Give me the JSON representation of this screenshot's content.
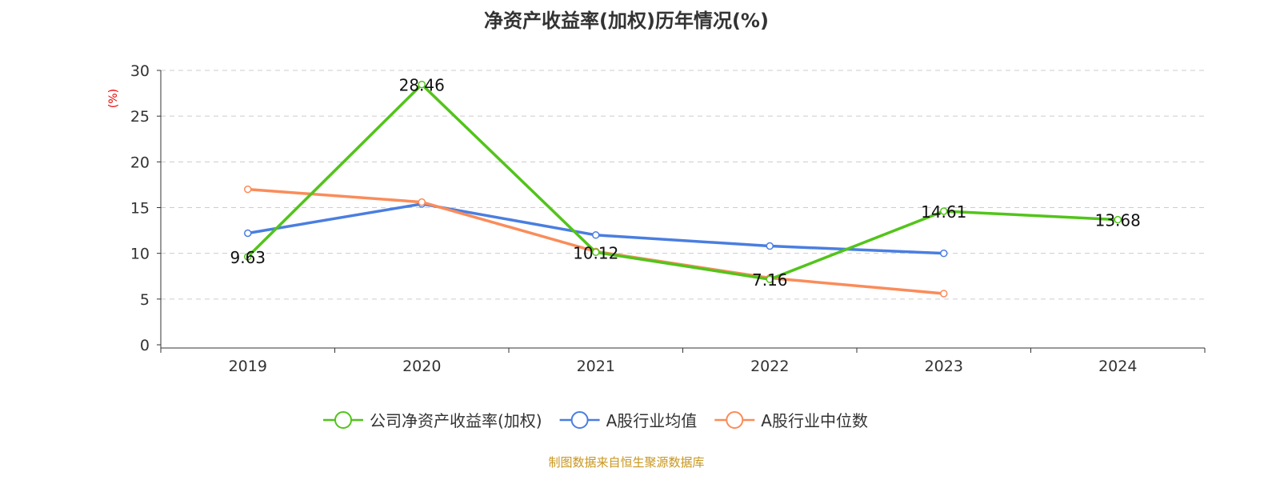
{
  "title": "净资产收益率(加权)历年情况(%)",
  "footer": "制图数据来自恒生聚源数据库",
  "chart_data": {
    "type": "line",
    "title": "净资产收益率(加权)历年情况(%)",
    "ylabel": "(%)",
    "ylim": [
      0,
      30
    ],
    "yticks": [
      0,
      5,
      10,
      15,
      20,
      25,
      30
    ],
    "categories": [
      "2019",
      "2020",
      "2021",
      "2022",
      "2023",
      "2024"
    ],
    "grid": true,
    "legend_position": "bottom",
    "series": [
      {
        "name": "公司净资产收益率(加权)",
        "color": "#52c41a",
        "values": [
          9.63,
          28.46,
          10.12,
          7.16,
          14.61,
          13.68
        ],
        "labels": true
      },
      {
        "name": "A股行业均值",
        "color": "#4a7ee0",
        "values": [
          12.2,
          15.4,
          12.0,
          10.8,
          10.0,
          null
        ],
        "labels": false
      },
      {
        "name": "A股行业中位数",
        "color": "#fa8c5a",
        "values": [
          17.0,
          15.6,
          10.2,
          7.3,
          5.6,
          null
        ],
        "labels": false
      }
    ]
  }
}
